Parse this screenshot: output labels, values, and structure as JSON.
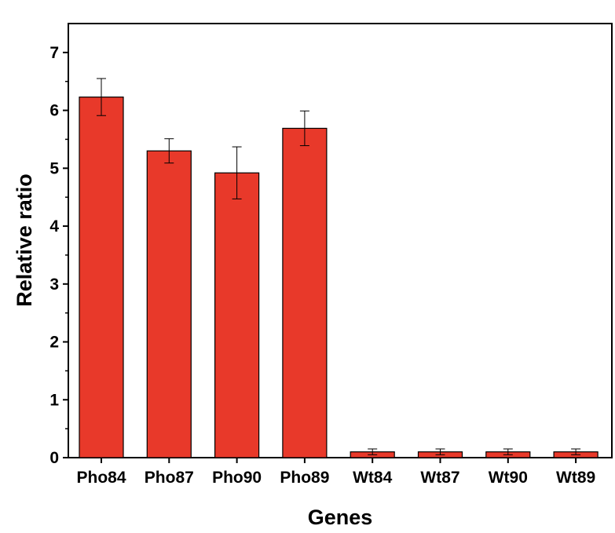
{
  "chart_data": {
    "type": "bar",
    "title": "",
    "xlabel": "Genes",
    "ylabel": "Relative ratio",
    "categories": [
      "Pho84",
      "Pho87",
      "Pho90",
      "Pho89",
      "Wt84",
      "Wt87",
      "Wt90",
      "Wt89"
    ],
    "values": [
      6.23,
      5.3,
      4.92,
      5.69,
      0.1,
      0.1,
      0.1,
      0.1
    ],
    "errors": [
      0.32,
      0.21,
      0.45,
      0.3,
      0.05,
      0.05,
      0.05,
      0.05
    ],
    "ylim": [
      0,
      7.5
    ],
    "yticks": [
      0,
      1,
      2,
      3,
      4,
      5,
      6,
      7
    ],
    "grid": false,
    "legend": "none",
    "bar_color": "#e8392a",
    "bar_edge_color": "#000000"
  }
}
